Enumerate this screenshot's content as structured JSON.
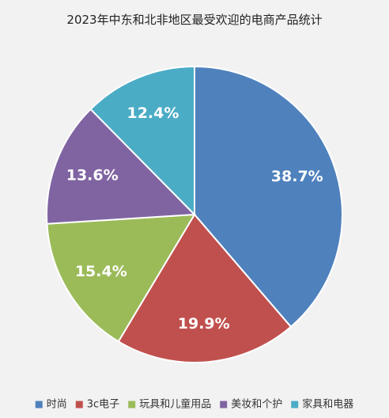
{
  "chart_data": {
    "type": "pie",
    "title": "2023年中东和北非地区最受欢迎的电商产品统计",
    "categories": [
      "时尚",
      "3c电子",
      "玩具和儿童用品",
      "美妆和个护",
      "家具和电器"
    ],
    "values": [
      38.7,
      19.9,
      15.4,
      13.6,
      12.4
    ],
    "value_labels": [
      "38.7%",
      "19.9%",
      "15.4%",
      "13.6%",
      "12.4%"
    ],
    "colors": [
      "#4f81bd",
      "#c0504d",
      "#9bbb59",
      "#8064a2",
      "#4bacc6"
    ],
    "start_angle": "12 o'clock",
    "direction": "clockwise",
    "legend": "bottom"
  }
}
